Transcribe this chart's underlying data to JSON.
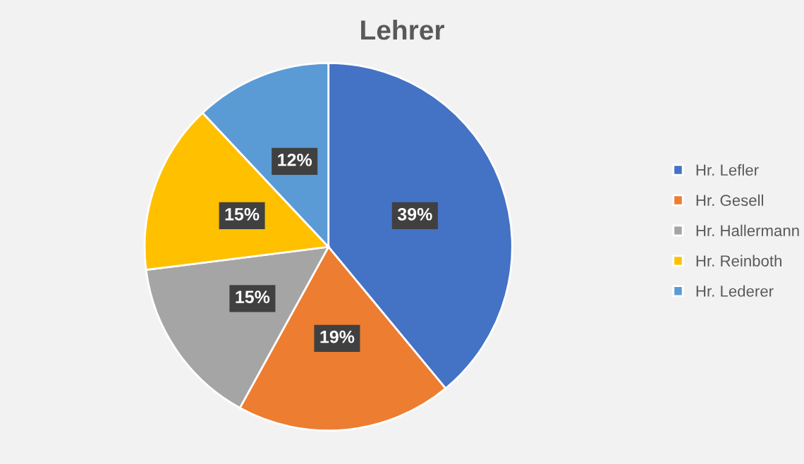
{
  "chart_data": {
    "type": "pie",
    "title": "Lehrer",
    "categories": [
      "Hr. Lefler",
      "Hr. Gesell",
      "Hr. Hallermann",
      "Hr. Reinboth",
      "Hr. Lederer"
    ],
    "values": [
      39,
      19,
      15,
      15,
      12
    ],
    "colors": [
      "#4472c4",
      "#ed7d31",
      "#a5a5a5",
      "#ffc000",
      "#5b9bd5"
    ],
    "value_labels": [
      "39%",
      "19%",
      "15%",
      "15%",
      "12%"
    ],
    "legend": "right"
  }
}
